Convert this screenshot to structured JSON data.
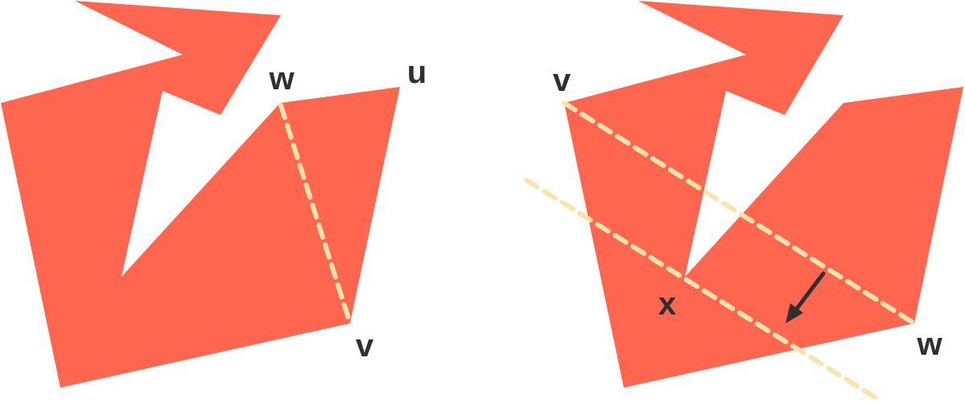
{
  "colors": {
    "polygon_fill": "#FF6650",
    "diagonal_stroke": "#FBE3AD",
    "label_text": "#2F2F2F",
    "arrow": "#2F2F2F",
    "background": "#FFFFFF"
  },
  "left_panel": {
    "labels": {
      "w": "w",
      "u": "u",
      "v": "v"
    }
  },
  "right_panel": {
    "labels": {
      "v": "v",
      "x": "x",
      "w": "w"
    }
  }
}
